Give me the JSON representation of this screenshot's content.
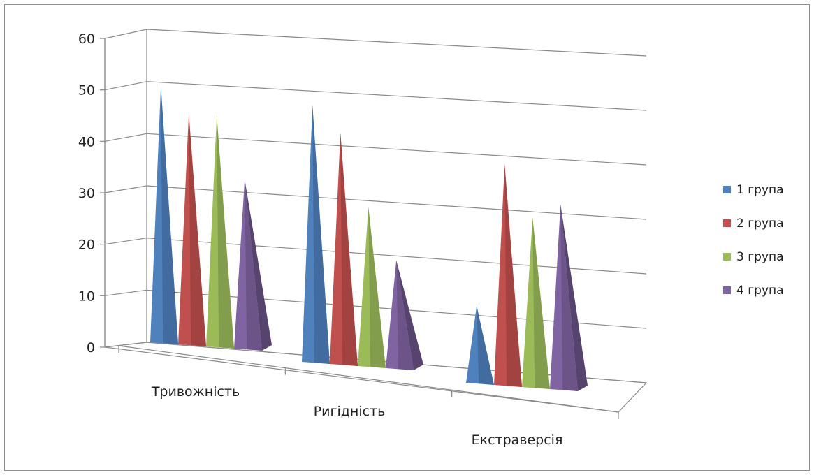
{
  "chart_data": {
    "type": "bar",
    "style": "3d-pyramid",
    "categories": [
      "Тривожність",
      "Ригідність",
      "Екстраверсія"
    ],
    "series": [
      {
        "name": "1 група",
        "color": "#4f81bd",
        "values": [
          50,
          50,
          15
        ]
      },
      {
        "name": "2 група",
        "color": "#c0504d",
        "values": [
          45,
          45,
          43
        ]
      },
      {
        "name": "3 група",
        "color": "#9bbb59",
        "values": [
          45,
          31,
          33
        ]
      },
      {
        "name": "4 група",
        "color": "#8064a2",
        "values": [
          33,
          21,
          36
        ]
      }
    ],
    "ylim": [
      0,
      60
    ],
    "yticks": [
      "0",
      "10",
      "20",
      "30",
      "40",
      "50",
      "60"
    ],
    "grid": true,
    "legend": "right"
  }
}
